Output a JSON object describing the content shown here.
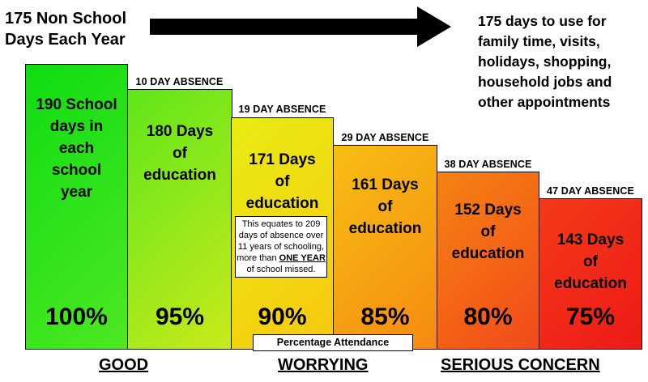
{
  "header": {
    "left_line1": "175 Non School",
    "left_line2": "Days Each Year",
    "right_lines": [
      "175 days to use for",
      "family time, visits,",
      "holidays, shopping,",
      "household jobs and",
      "other appointments"
    ]
  },
  "bars": [
    {
      "lines": [
        "190 School",
        "days in",
        "each",
        "school",
        "year"
      ],
      "percent": "100%",
      "absence": ""
    },
    {
      "lines": [
        "180 Days",
        "of",
        "education"
      ],
      "percent": "95%",
      "absence": "10 DAY ABSENCE"
    },
    {
      "lines": [
        "171 Days",
        "of",
        "education"
      ],
      "percent": "90%",
      "absence": "19 DAY ABSENCE"
    },
    {
      "lines": [
        "161 Days",
        "of",
        "education"
      ],
      "percent": "85%",
      "absence": "29 DAY ABSENCE"
    },
    {
      "lines": [
        "152 Days",
        "of",
        "education"
      ],
      "percent": "80%",
      "absence": "38 DAY ABSENCE"
    },
    {
      "lines": [
        "143 Days",
        "of",
        "education"
      ],
      "percent": "75%",
      "absence": "47 DAY ABSENCE"
    }
  ],
  "note": {
    "text_before": "This equates to 209 days of absence over 11 years of schooling, more than ",
    "emphasis": "ONE YEAR",
    "text_after": " of school missed."
  },
  "percentage_label": "Percentage Attendance",
  "categories": {
    "good": "GOOD",
    "worrying": "WORRYING",
    "serious": "SERIOUS CONCERN"
  },
  "colors": {
    "green": "#19e619",
    "yellow_green": "#b8e61a",
    "yellow": "#f5e20f",
    "orange": "#f7a20f",
    "red_orange": "#f5561a",
    "red": "#f0201a"
  }
}
